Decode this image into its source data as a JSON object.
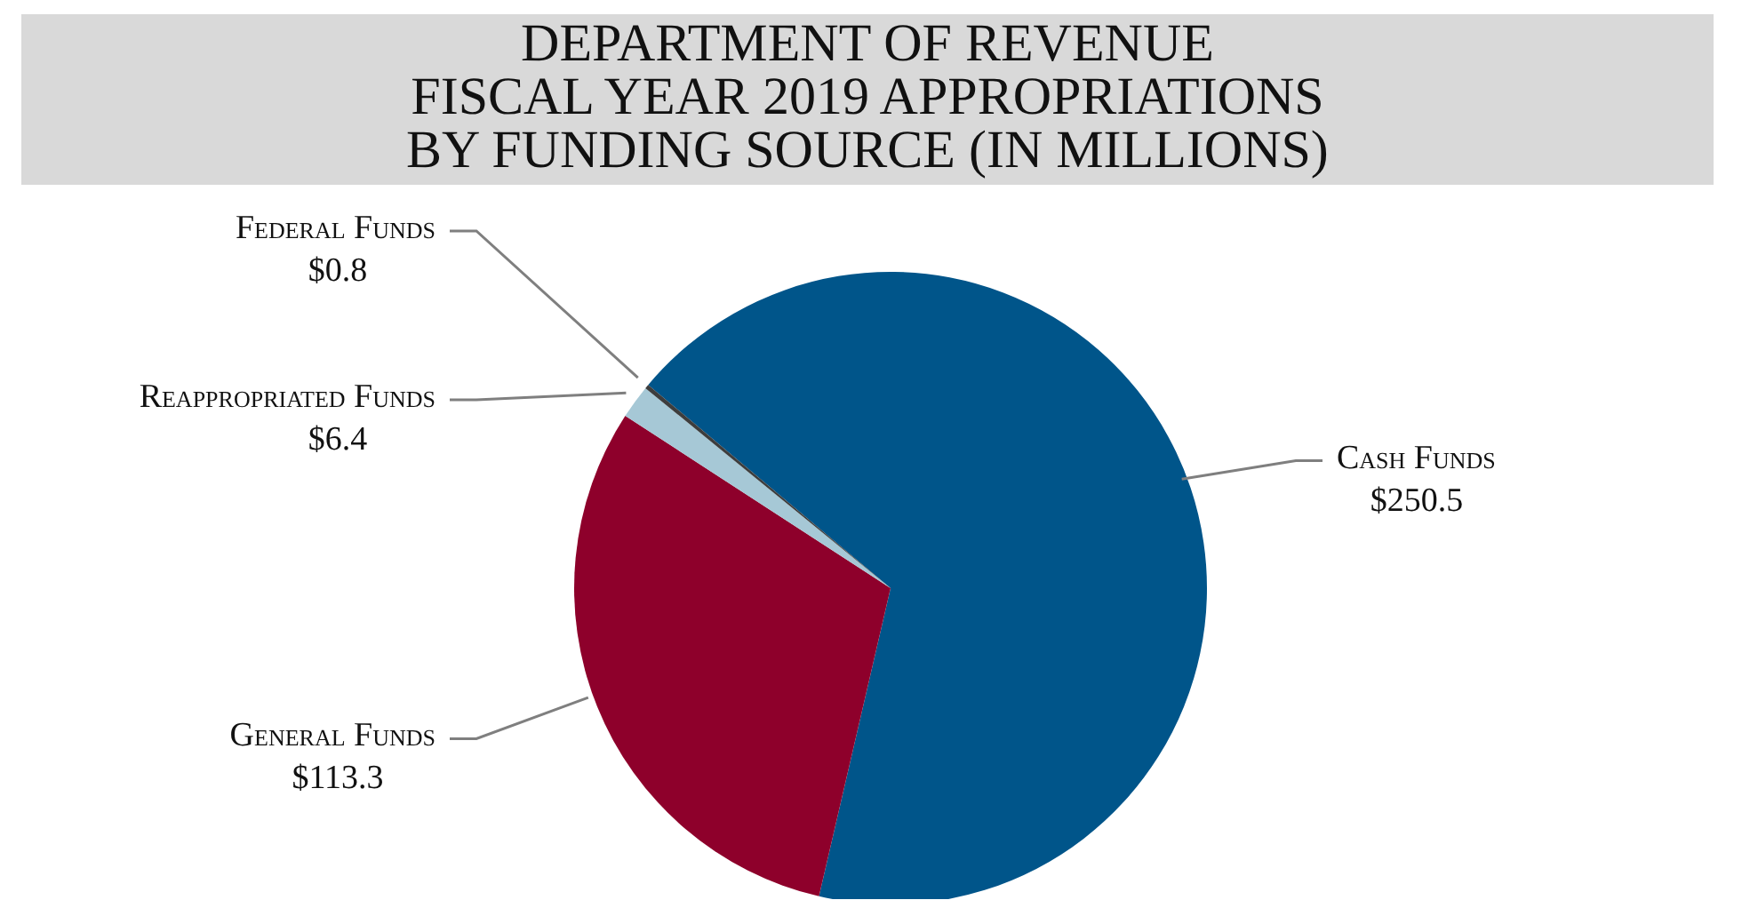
{
  "chart_data": {
    "type": "pie",
    "title": "DEPARTMENT OF REVENUE\nFISCAL YEAR 2019 APPROPRIATIONS\nBY FUNDING SOURCE (IN MILLIONS)",
    "categories": [
      "Cash Funds",
      "General Funds",
      "Reappropriated Funds",
      "Federal Funds"
    ],
    "values": [
      250.5,
      113.3,
      6.4,
      0.8
    ],
    "value_labels": [
      "$250.5",
      "$113.3",
      "$6.4",
      "$0.8"
    ],
    "colors": [
      "#00558a",
      "#8e002b",
      "#a6c8d6",
      "#3d3d3d"
    ],
    "legend": false
  }
}
